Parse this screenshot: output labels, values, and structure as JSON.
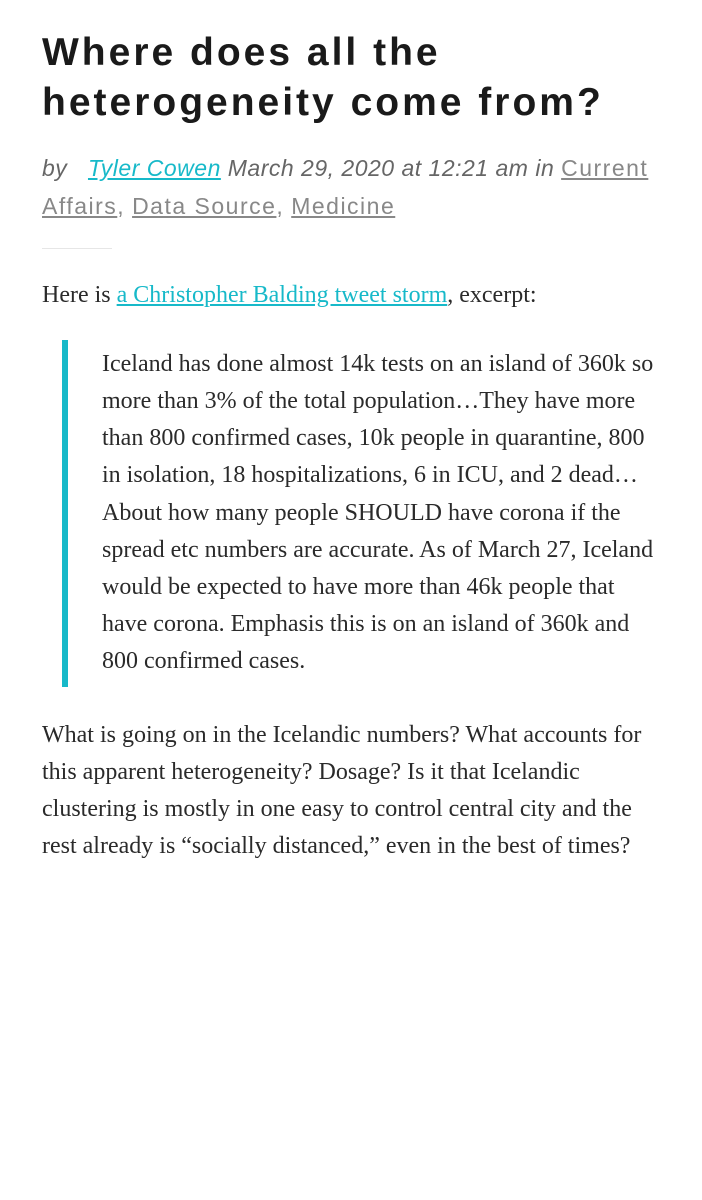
{
  "post": {
    "title": "Where does all the heterogeneity come from?",
    "byline": {
      "by": "by",
      "author": "Tyler Cowen",
      "date": "March 29, 2020 at 12:21 am",
      "in": "in",
      "cat1": "Current Affairs",
      "sep1": ",",
      "cat2": "Data Source",
      "sep2": ",",
      "cat3": "Medicine"
    },
    "intro_pre": "Here is ",
    "intro_link": "a Christopher Balding tweet storm",
    "intro_post": ", excerpt:",
    "quote": "Iceland has done almost 14k tests on an island of 360k so more than 3% of the total population…They have more than 800 confirmed cases, 10k people in quarantine, 800 in isolation, 18 hospitalizations, 6 in ICU, and 2 dead…About how many people SHOULD have corona if the spread etc numbers are accurate. As of March 27, Iceland would be expected to have more than 46k people that have corona. Emphasis this is on an island of 360k and 800 confirmed cases.",
    "para2": "What is going on in the Icelandic numbers?  What accounts for this apparent heterogeneity?  Dosage?  Is it that Icelandic clustering is mostly in one easy to control central city and the rest already is “socially distanced,” even in the best of times?"
  },
  "colors": {
    "accent": "#17b9c9",
    "textDark": "#1a1a1a",
    "textBody": "#2a2a2a",
    "textMeta": "#777777",
    "divider": "#e6e6e6"
  }
}
